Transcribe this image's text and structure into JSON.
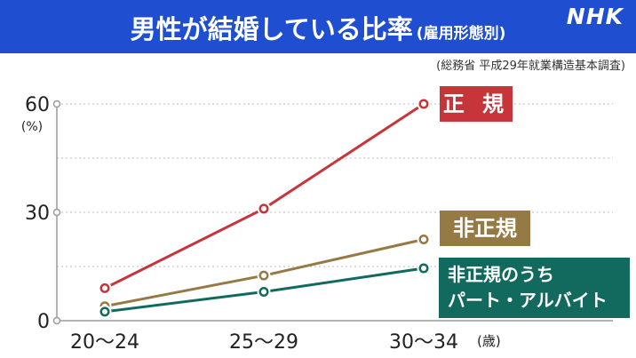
{
  "header": {
    "title": "男性が結婚している比率",
    "subtitle": "(雇用形態別)",
    "logo": "NHK"
  },
  "source": "(総務省 平成29年就業構造基本調査)",
  "colors": {
    "header_bg": "#1f4fd0",
    "regular": "#c7343a",
    "non_regular": "#967a45",
    "part_time": "#126a5f"
  },
  "chart_data": {
    "type": "line",
    "title": "男性が結婚している比率",
    "categories": [
      "20〜24",
      "25〜29",
      "30〜34"
    ],
    "x_unit": "(歳)",
    "y_unit": "(%)",
    "ylim": [
      0,
      60
    ],
    "yticks": [
      0,
      30,
      60
    ],
    "grid": true,
    "series": [
      {
        "name": "正 規",
        "key": "regular",
        "values": [
          9,
          31,
          60
        ]
      },
      {
        "name": "非正規",
        "key": "non_regular",
        "values": [
          4,
          12.5,
          22.5
        ]
      },
      {
        "name_lines": [
          "非正規のうち",
          "パート・アルバイト"
        ],
        "key": "part_time",
        "values": [
          2.5,
          8,
          14.5
        ]
      }
    ]
  }
}
